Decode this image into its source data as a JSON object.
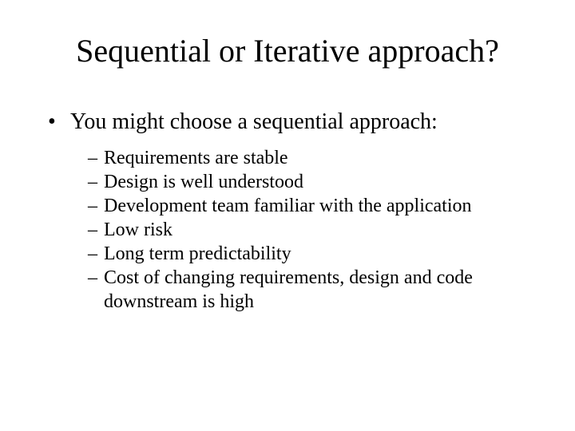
{
  "slide": {
    "title": "Sequential or Iterative approach?",
    "level1": {
      "bullet": "•",
      "text": "You might choose a sequential approach:"
    },
    "level2": {
      "dash": "–",
      "items": [
        "Requirements are stable",
        "Design is well understood",
        "Development team familiar with the application",
        "Low risk",
        "Long term predictability",
        "Cost of changing requirements, design and code downstream is high"
      ]
    }
  },
  "style": {
    "background_color": "#ffffff",
    "text_color": "#000000",
    "title_fontsize": 40,
    "level1_fontsize": 28,
    "level2_fontsize": 24,
    "font_family": "Times New Roman"
  }
}
